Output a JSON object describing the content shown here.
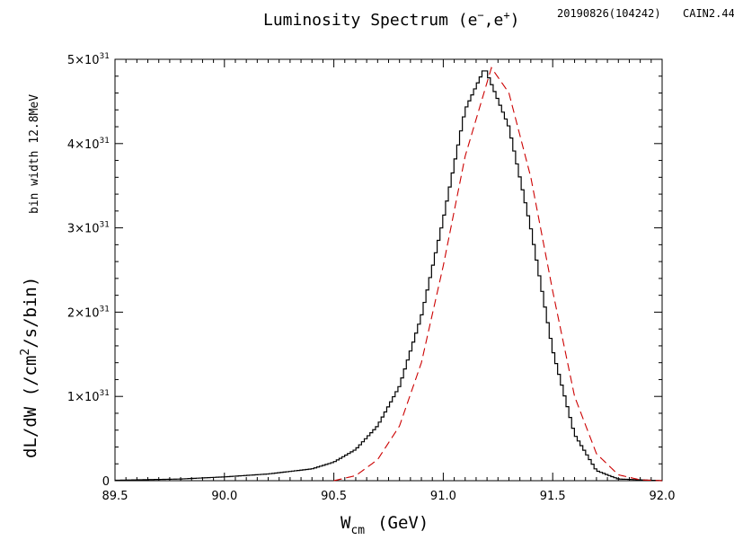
{
  "chart_data": {
    "type": "line",
    "title_main": "Luminosity Spectrum (e",
    "title_sup1": "−",
    "title_mid": ",e",
    "title_sup2": "+",
    "title_end": ")",
    "timestamp": "20190826(104242)",
    "version": "CAIN2.44",
    "xlabel_main": "W",
    "xlabel_sub": "cm",
    "xlabel_unit": "(GeV)",
    "ylabel_part1": "dL/dW  (/cm",
    "ylabel_sup": "2",
    "ylabel_part2": "/s/bin)",
    "ylabel_bin": "bin width 12.8MeV",
    "xlim": [
      89.5,
      92.0
    ],
    "ylim": [
      0,
      5e+31
    ],
    "x_ticks": [
      {
        "v": 89.5,
        "label": "89.5"
      },
      {
        "v": 90.0,
        "label": "90.0"
      },
      {
        "v": 90.5,
        "label": "90.5"
      },
      {
        "v": 91.0,
        "label": "91.0"
      },
      {
        "v": 91.5,
        "label": "91.5"
      },
      {
        "v": 92.0,
        "label": "92.0"
      }
    ],
    "y_ticks": [
      {
        "v": 0,
        "label": "0",
        "mant": "",
        "exp": ""
      },
      {
        "v": 1e+31,
        "label": "",
        "mant": "1×10",
        "exp": "31"
      },
      {
        "v": 2e+31,
        "label": "",
        "mant": "2×10",
        "exp": "31"
      },
      {
        "v": 3e+31,
        "label": "",
        "mant": "3×10",
        "exp": "31"
      },
      {
        "v": 4e+31,
        "label": "",
        "mant": "4×10",
        "exp": "31"
      },
      {
        "v": 5e+31,
        "label": "",
        "mant": "5×10",
        "exp": "31"
      }
    ],
    "series": [
      {
        "style": "histogram",
        "color": "#000000",
        "points": [
          [
            89.5,
            0.005
          ],
          [
            89.8,
            0.02
          ],
          [
            90.0,
            0.045
          ],
          [
            90.2,
            0.08
          ],
          [
            90.4,
            0.14
          ],
          [
            90.5,
            0.22
          ],
          [
            90.6,
            0.37
          ],
          [
            90.7,
            0.65
          ],
          [
            90.8,
            1.12
          ],
          [
            90.9,
            1.95
          ],
          [
            91.0,
            3.1
          ],
          [
            91.1,
            4.4
          ],
          [
            91.19,
            4.9
          ],
          [
            91.3,
            4.2
          ],
          [
            91.4,
            3.0
          ],
          [
            91.5,
            1.55
          ],
          [
            91.6,
            0.55
          ],
          [
            91.7,
            0.12
          ],
          [
            91.8,
            0.02
          ],
          [
            92.0,
            0.0
          ]
        ]
      },
      {
        "style": "dashed",
        "color": "#cc0000",
        "points": [
          [
            90.5,
            0.0
          ],
          [
            90.6,
            0.06
          ],
          [
            90.7,
            0.25
          ],
          [
            90.8,
            0.65
          ],
          [
            90.9,
            1.4
          ],
          [
            91.0,
            2.55
          ],
          [
            91.1,
            3.85
          ],
          [
            91.22,
            4.9
          ],
          [
            91.3,
            4.6
          ],
          [
            91.4,
            3.6
          ],
          [
            91.5,
            2.25
          ],
          [
            91.6,
            1.0
          ],
          [
            91.7,
            0.32
          ],
          [
            91.8,
            0.07
          ],
          [
            91.9,
            0.01
          ],
          [
            92.0,
            0.0
          ]
        ]
      }
    ]
  }
}
